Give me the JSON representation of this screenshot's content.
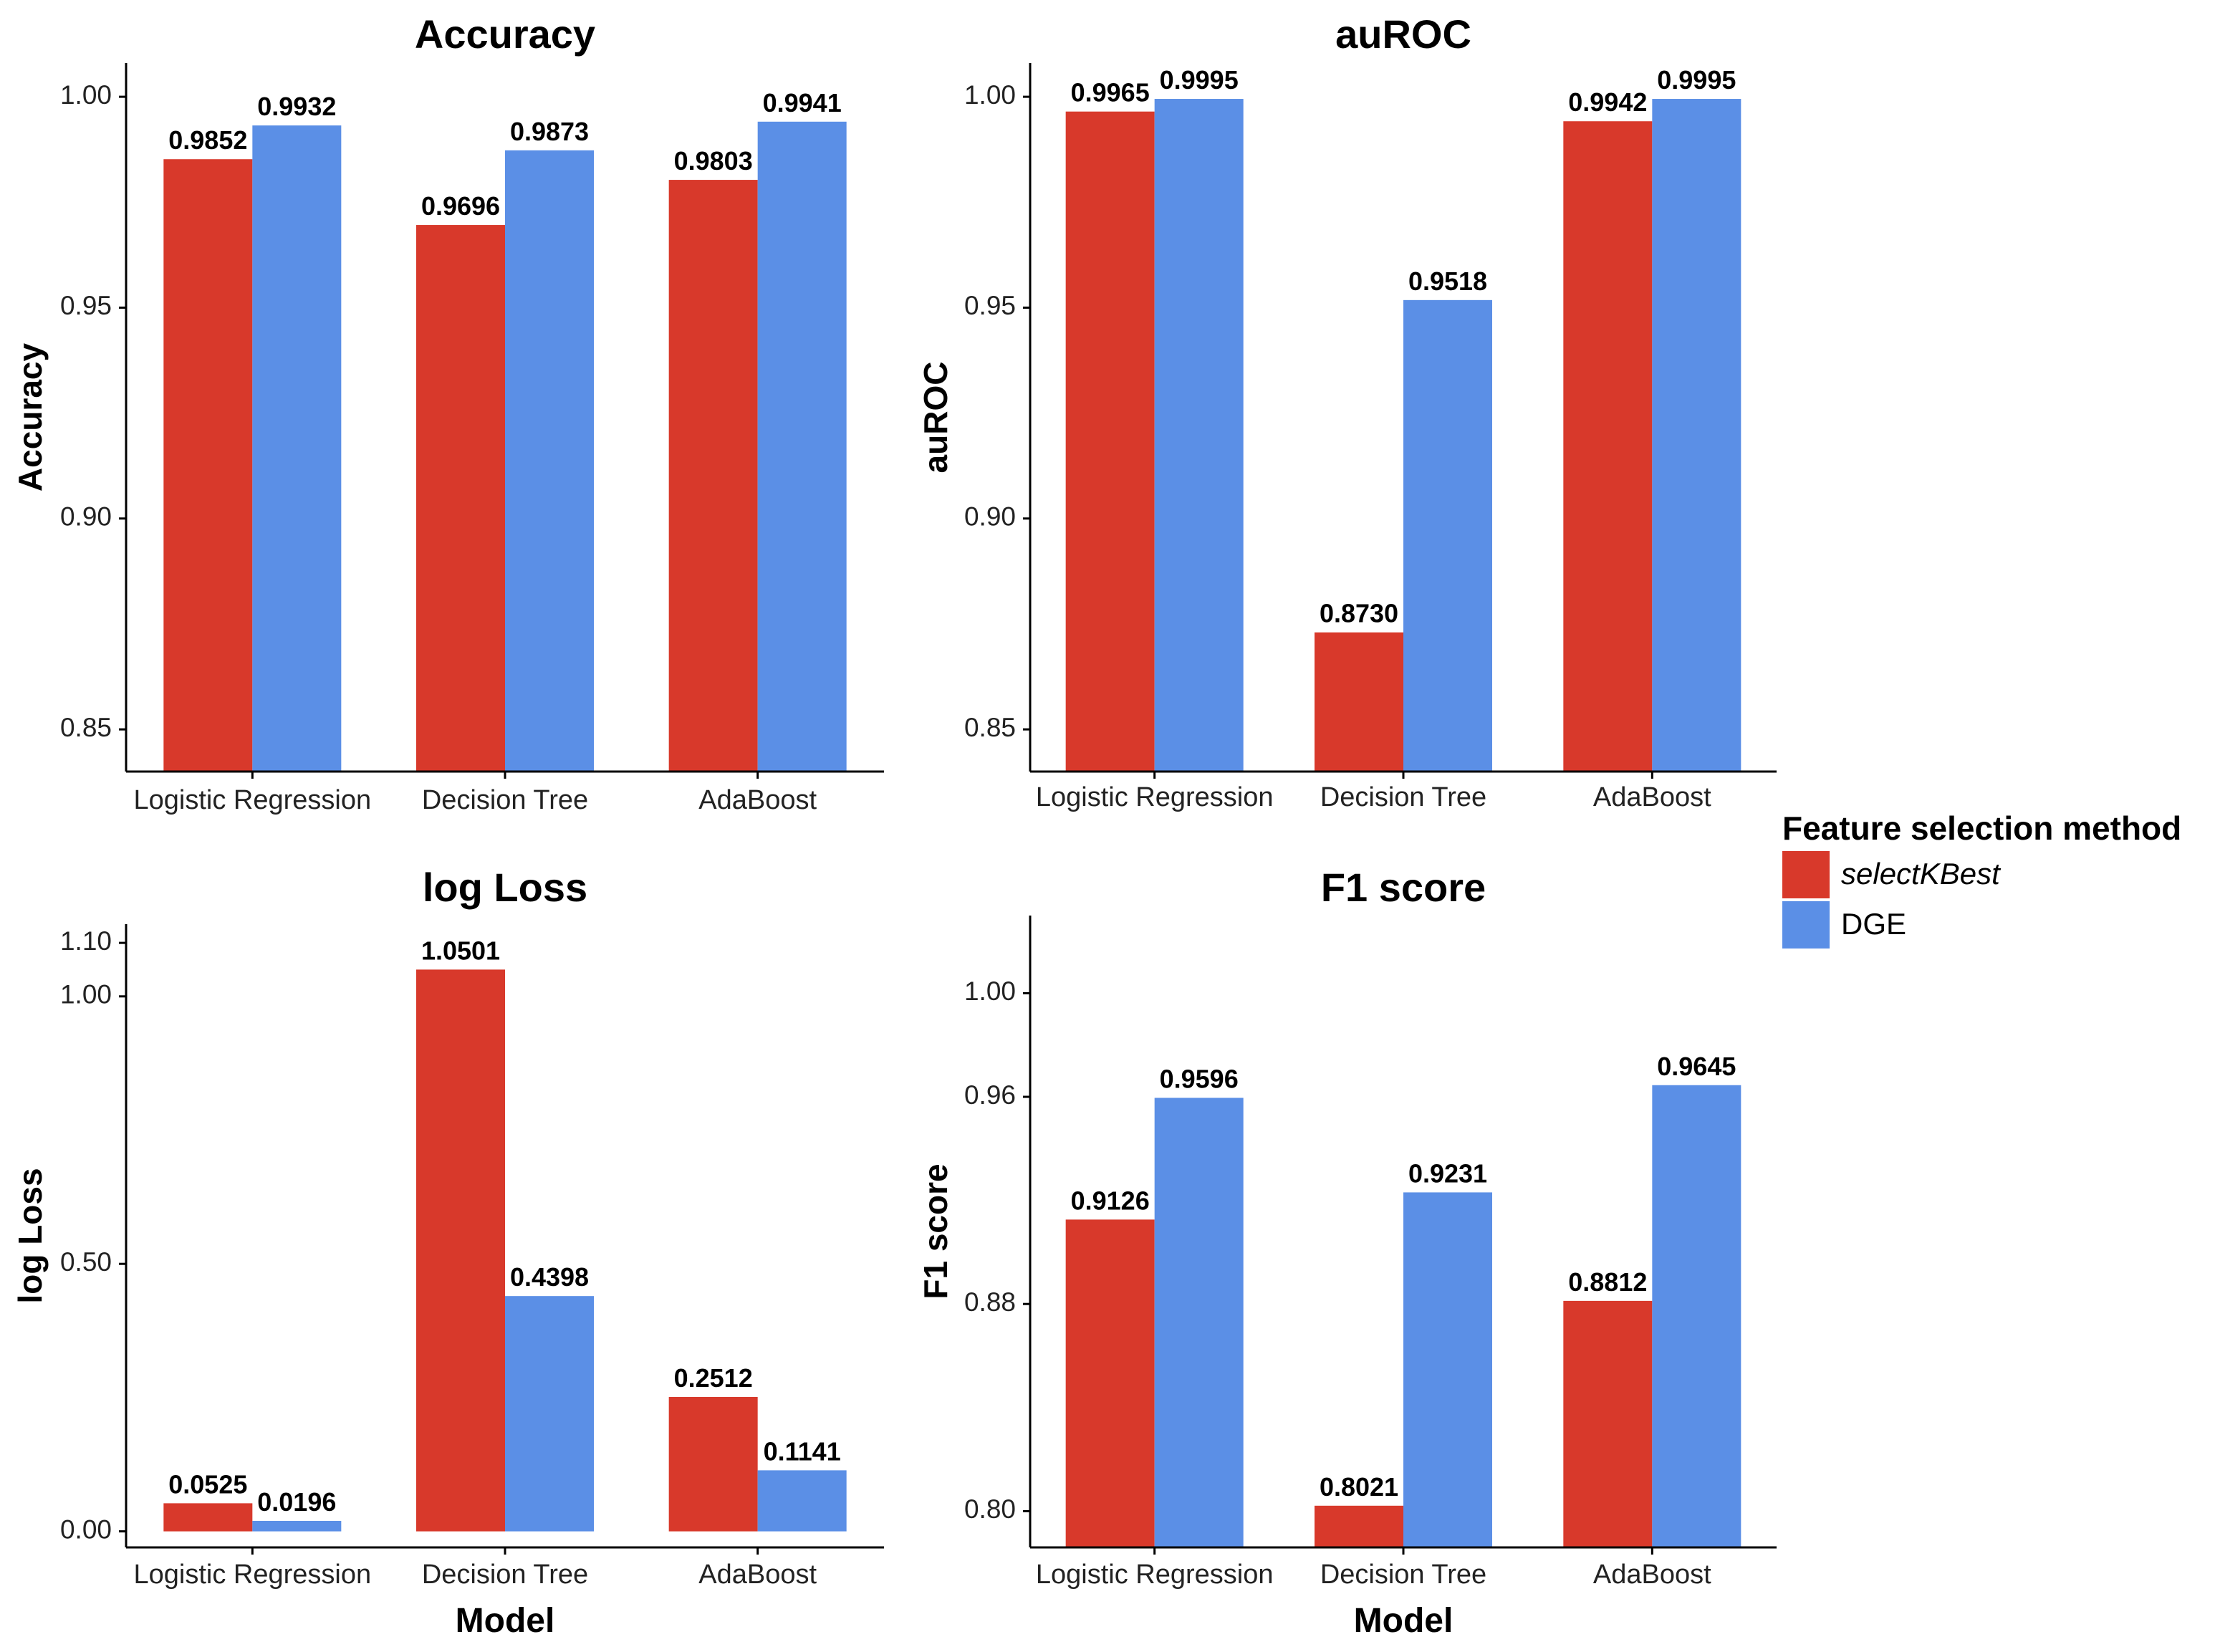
{
  "legend": {
    "title": "Feature selection method",
    "items": [
      {
        "label": "selectKBest",
        "color": "#D8392B",
        "italic": true
      },
      {
        "label": "DGE",
        "color": "#5B8FE6",
        "italic": false
      }
    ]
  },
  "chart_data": [
    {
      "type": "bar",
      "title": "Accuracy",
      "ylabel": "Accuracy",
      "xlabel": "",
      "categories": [
        "Logistic Regression",
        "Decision Tree",
        "AdaBoost"
      ],
      "series": [
        {
          "name": "selectKBest",
          "color": "#D8392B",
          "values": [
            0.9852,
            0.9696,
            0.9803
          ],
          "labels": [
            "0.9852",
            "0.9696",
            "0.9803"
          ]
        },
        {
          "name": "DGE",
          "color": "#5B8FE6",
          "values": [
            0.9932,
            0.9873,
            0.9941
          ],
          "labels": [
            "0.9932",
            "0.9873",
            "0.9941"
          ]
        }
      ],
      "ylim": [
        0.84,
        1.008
      ],
      "yticks": [
        0.85,
        0.95,
        1.0
      ],
      "yticklabels": [
        "0.85",
        "0.95",
        "1.00"
      ],
      "yticks_minor": [
        0.9
      ],
      "yticklabels_minor": [
        "0.90"
      ],
      "grid": false,
      "legend": "right"
    },
    {
      "type": "bar",
      "title": "auROC",
      "ylabel": "auROC",
      "xlabel": "",
      "categories": [
        "Logistic Regression",
        "Decision Tree",
        "AdaBoost"
      ],
      "series": [
        {
          "name": "selectKBest",
          "color": "#D8392B",
          "values": [
            0.9965,
            0.873,
            0.9942
          ],
          "labels": [
            "0.9965",
            "0.8730",
            "0.9942"
          ]
        },
        {
          "name": "DGE",
          "color": "#5B8FE6",
          "values": [
            0.9995,
            0.9518,
            0.9995
          ],
          "labels": [
            "0.9995",
            "0.9518",
            "0.9995"
          ]
        }
      ],
      "ylim": [
        0.84,
        1.008
      ],
      "yticks": [
        0.85,
        0.9,
        0.95,
        1.0
      ],
      "yticklabels": [
        "0.85",
        "0.90",
        "0.95",
        "1.00"
      ],
      "grid": false,
      "legend": "right"
    },
    {
      "type": "bar",
      "title": "log Loss",
      "ylabel": "log Loss",
      "xlabel": "Model",
      "categories": [
        "Logistic Regression",
        "Decision Tree",
        "AdaBoost"
      ],
      "series": [
        {
          "name": "selectKBest",
          "color": "#D8392B",
          "values": [
            0.0525,
            1.0501,
            0.2512
          ],
          "labels": [
            "0.0525",
            "1.0501",
            "0.2512"
          ]
        },
        {
          "name": "DGE",
          "color": "#5B8FE6",
          "values": [
            0.0196,
            0.4398,
            0.1141
          ],
          "labels": [
            "0.0196",
            "0.4398",
            "0.1141"
          ]
        }
      ],
      "ylim": [
        -0.03,
        1.135
      ],
      "yticks": [
        0.0,
        0.5,
        1.0,
        1.1
      ],
      "yticklabels": [
        "0.00",
        "0.50",
        "1.00",
        "1.10"
      ],
      "grid": false,
      "legend": "right"
    },
    {
      "type": "bar",
      "title": "F1 score",
      "ylabel": "F1 score",
      "xlabel": "Model",
      "categories": [
        "Logistic Regression",
        "Decision Tree",
        "AdaBoost"
      ],
      "series": [
        {
          "name": "selectKBest",
          "color": "#D8392B",
          "values": [
            0.9126,
            0.8021,
            0.8812
          ],
          "labels": [
            "0.9126",
            "0.8021",
            "0.8812"
          ]
        },
        {
          "name": "DGE",
          "color": "#5B8FE6",
          "values": [
            0.9596,
            0.9231,
            0.9645
          ],
          "labels": [
            "0.9596",
            "0.9231",
            "0.9645"
          ]
        }
      ],
      "ylim": [
        0.786,
        1.03
      ],
      "yticks": [
        0.8,
        0.88,
        0.96,
        1.0
      ],
      "yticklabels": [
        "0.80",
        "0.88",
        "0.96",
        "1.00"
      ],
      "grid": false,
      "legend": "right"
    }
  ]
}
